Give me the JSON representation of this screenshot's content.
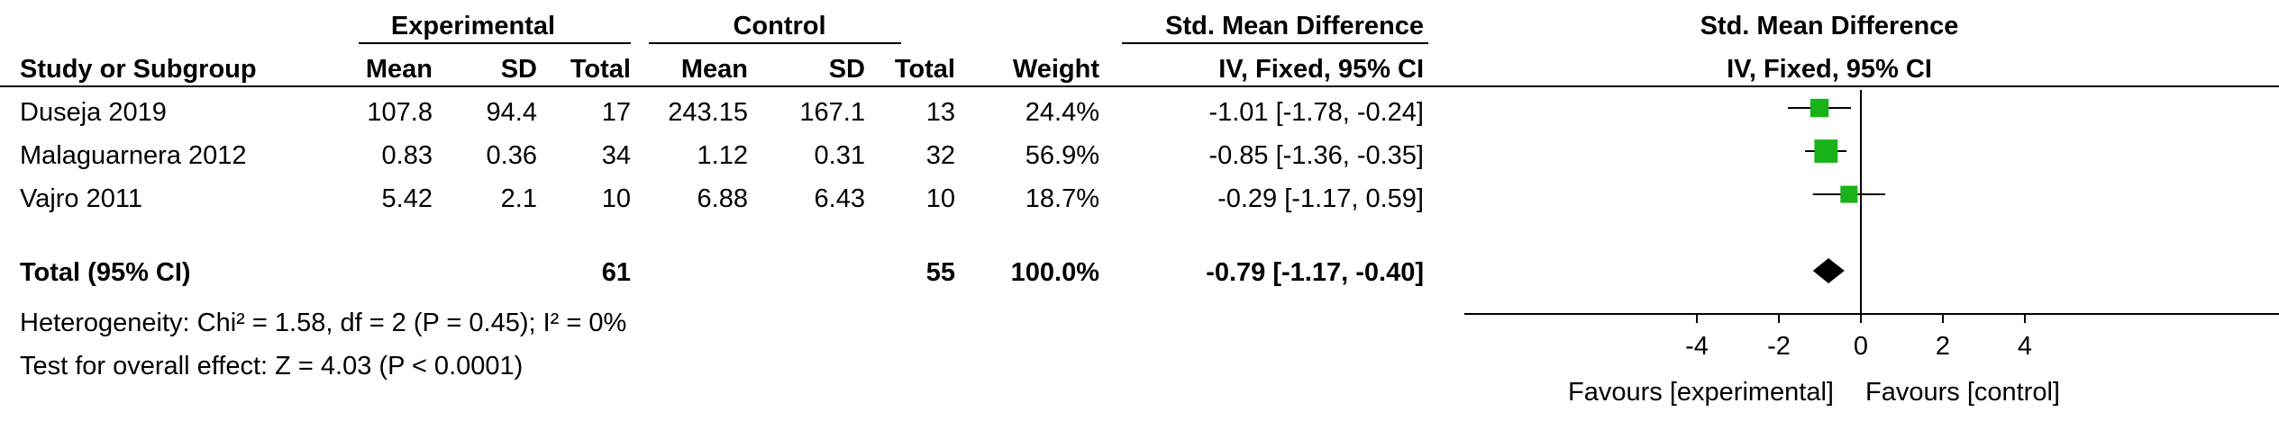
{
  "table": {
    "group_headers": {
      "experimental": "Experimental",
      "control": "Control",
      "smd": "Std. Mean Difference"
    },
    "columns": {
      "study": "Study or Subgroup",
      "exp_mean": "Mean",
      "exp_sd": "SD",
      "exp_total": "Total",
      "ctl_mean": "Mean",
      "ctl_sd": "SD",
      "ctl_total": "Total",
      "weight": "Weight",
      "ci": "IV, Fixed, 95% CI"
    },
    "rows": [
      {
        "study": "Duseja 2019",
        "exp_mean": "107.8",
        "exp_sd": "94.4",
        "exp_total": "17",
        "ctl_mean": "243.15",
        "ctl_sd": "167.1",
        "ctl_total": "13",
        "weight": "24.4%",
        "ci": "-1.01 [-1.78, -0.24]"
      },
      {
        "study": "Malaguarnera 2012",
        "exp_mean": "0.83",
        "exp_sd": "0.36",
        "exp_total": "34",
        "ctl_mean": "1.12",
        "ctl_sd": "0.31",
        "ctl_total": "32",
        "weight": "56.9%",
        "ci": "-0.85 [-1.36, -0.35]"
      },
      {
        "study": "Vajro 2011",
        "exp_mean": "5.42",
        "exp_sd": "2.1",
        "exp_total": "10",
        "ctl_mean": "6.88",
        "ctl_sd": "6.43",
        "ctl_total": "10",
        "weight": "18.7%",
        "ci": "-0.29 [-1.17, 0.59]"
      }
    ],
    "total": {
      "study": "Total (95% CI)",
      "exp_total": "61",
      "ctl_total": "55",
      "weight": "100.0%",
      "ci": "-0.79 [-1.17, -0.40]"
    },
    "heterogeneity": "Heterogeneity: Chi² = 1.58, df = 2 (P = 0.45); I² = 0%",
    "overall_effect": "Test for overall effect: Z = 4.03 (P < 0.0001)"
  },
  "chart_data": {
    "type": "scatter",
    "title": "Std. Mean Difference",
    "subtitle": "IV, Fixed, 95% CI",
    "xlim": [
      -4,
      4
    ],
    "xticks": [
      "-4",
      "-2",
      "0",
      "2",
      "4"
    ],
    "xlabel_left": "Favours [experimental]",
    "xlabel_right": "Favours [control]",
    "studies": [
      {
        "study": "Duseja 2019",
        "estimate": -1.01,
        "ci_low": -1.78,
        "ci_high": -0.24,
        "weight": 24.4
      },
      {
        "study": "Malaguarnera 2012",
        "estimate": -0.85,
        "ci_low": -1.36,
        "ci_high": -0.35,
        "weight": 56.9
      },
      {
        "study": "Vajro 2011",
        "estimate": -0.29,
        "ci_low": -1.17,
        "ci_high": 0.59,
        "weight": 18.7
      }
    ],
    "pooled": {
      "estimate": -0.79,
      "ci_low": -1.17,
      "ci_high": -0.4
    },
    "colors": {
      "study_marker": "#19b319",
      "pooled_marker": "#000000",
      "lines": "#000000"
    }
  }
}
